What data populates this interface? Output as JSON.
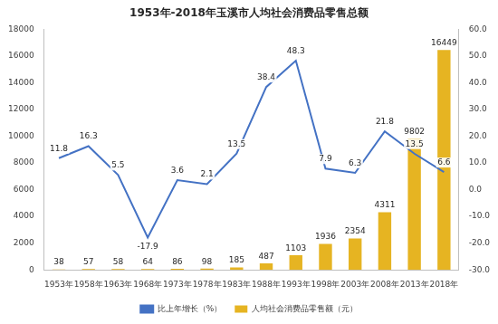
{
  "chart_data": {
    "type": "bar",
    "title": "1953年-2018年玉溪市人均社会消费品零售总额",
    "categories": [
      "1953年",
      "1958年",
      "1963年",
      "1968年",
      "1973年",
      "1978年",
      "1983年",
      "1988年",
      "1993年",
      "1998年",
      "2003年",
      "2008年",
      "2013年",
      "2018年"
    ],
    "series": [
      {
        "name": "人均社会消费品零售额（元）",
        "type": "bar",
        "color": "#e6b422",
        "values": [
          38,
          57,
          58,
          64,
          86,
          98,
          185,
          487,
          1103,
          1936,
          2354,
          4311,
          9802,
          16449
        ]
      },
      {
        "name": "比上年增长（%）",
        "type": "line",
        "color": "#4472c4",
        "axis": "y2",
        "marker": "none",
        "values": [
          11.8,
          16.3,
          5.5,
          -17.9,
          3.6,
          2.1,
          13.5,
          38.4,
          48.3,
          7.9,
          6.3,
          21.8,
          13.5,
          6.6
        ]
      }
    ],
    "ylim": [
      0,
      18000
    ],
    "yticks": [
      0,
      2000,
      4000,
      6000,
      8000,
      10000,
      12000,
      14000,
      16000,
      18000
    ],
    "y2lim": [
      -30,
      60
    ],
    "y2ticks": [
      {
        "value": -30,
        "label": "-30.0"
      },
      {
        "value": -20,
        "label": "-20.0"
      },
      {
        "value": -10,
        "label": "-10.0"
      },
      {
        "value": 0,
        "label": "0.0"
      },
      {
        "value": 10,
        "label": "10.0"
      },
      {
        "value": 20,
        "label": "20.0"
      },
      {
        "value": 30,
        "label": "30.0"
      },
      {
        "value": 40,
        "label": "40.0"
      },
      {
        "value": 50,
        "label": "50.0"
      },
      {
        "value": 60,
        "label": "60.0"
      }
    ],
    "grid": false,
    "legend": "bottom",
    "data_labels": true
  }
}
